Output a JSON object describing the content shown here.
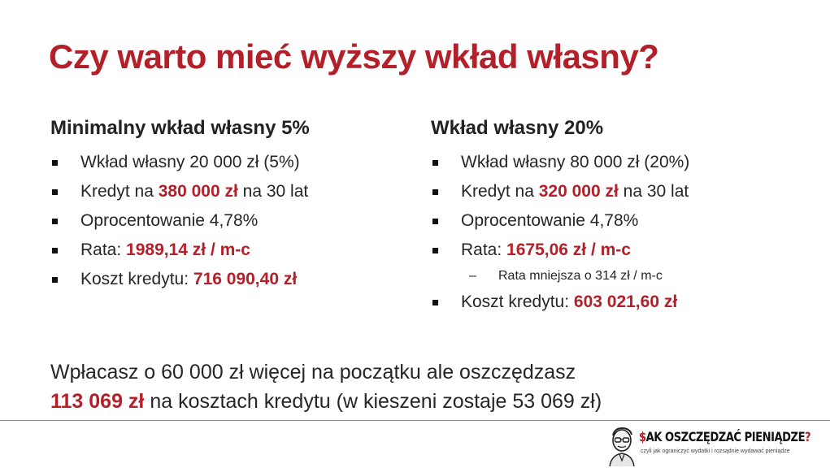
{
  "title": "Czy warto mieć wyższy wkład własny?",
  "left": {
    "heading": "Minimalny wkład własny 5%",
    "items": {
      "i0": {
        "text": "Wkład własny 20 000 zł (5%)"
      },
      "i1": {
        "pre": "Kredyt na ",
        "highlight": "380 000 zł",
        "post": " na 30 lat"
      },
      "i2": {
        "text": "Oprocentowanie 4,78%"
      },
      "i3": {
        "pre": "Rata: ",
        "highlight": "1989,14 zł / m-c"
      },
      "i4": {
        "pre": "Koszt kredytu: ",
        "highlight": "716 090,40 zł"
      }
    }
  },
  "right": {
    "heading": "Wkład własny 20%",
    "items": {
      "i0": {
        "text": "Wkład własny 80 000 zł (20%)"
      },
      "i1": {
        "pre": "Kredyt na ",
        "highlight": "320 000 zł",
        "post": " na 30 lat"
      },
      "i2": {
        "text": "Oprocentowanie 4,78%"
      },
      "i3": {
        "pre": "Rata: ",
        "highlight": "1675,06 zł / m-c"
      },
      "sub": {
        "text": "Rata mniejsza o 314 zł / m-c"
      },
      "i4": {
        "pre": "Koszt kredytu: ",
        "highlight": "603 021,60 zł"
      }
    }
  },
  "summary": {
    "line1": "Wpłacasz o 60 000 zł więcej na początku ale oszczędzasz",
    "line2_highlight": "113 069 zł",
    "line2_rest": " na kosztach kredytu (w kieszeni zostaje 53 069 zł)"
  },
  "logo": {
    "hook": "$",
    "name": "AK OSZCZĘDZAĆ PIENIĄDZE",
    "qm": "?",
    "tagline": "czyli jak ograniczyć wydatki i rozsądnie wydawać pieniądze"
  },
  "colors": {
    "accent": "#b3202a",
    "text": "#262626",
    "divider": "#c9777c"
  }
}
